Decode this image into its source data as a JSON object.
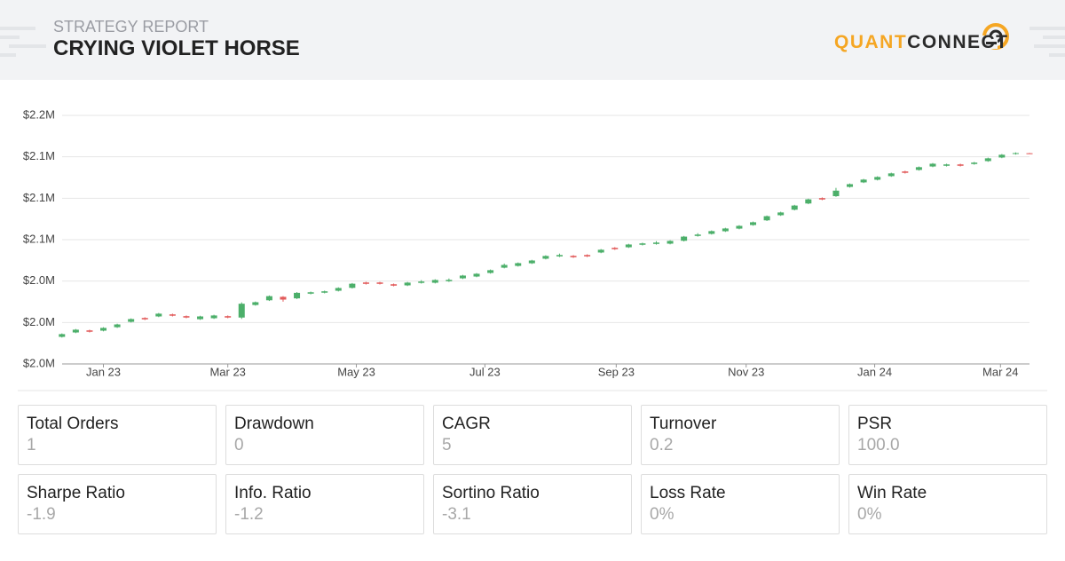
{
  "header": {
    "subtitle": "STRATEGY REPORT",
    "title": "CRYING VIOLET HORSE",
    "logo_left": "QUANT",
    "logo_right": "CONNECT"
  },
  "chart_data": {
    "type": "candlestick",
    "up_color": "#4caf6a",
    "down_color": "#e25b5b",
    "grid": true,
    "x": [
      0,
      1,
      2,
      3,
      4,
      5,
      6,
      7,
      8,
      9,
      10,
      11,
      12,
      13,
      14,
      15,
      16,
      17,
      18,
      19,
      20,
      21,
      22,
      23,
      24,
      25,
      26,
      27,
      28,
      29,
      30,
      31,
      32,
      33,
      34,
      35,
      36,
      37,
      38,
      39,
      40,
      41,
      42,
      43,
      44,
      45,
      46,
      47,
      48,
      49,
      50,
      51,
      52,
      53,
      54,
      55,
      56,
      57,
      58,
      59,
      60,
      61,
      62,
      63,
      64,
      65,
      66,
      67,
      68,
      69,
      70
    ],
    "open": [
      1999600,
      2002800,
      2004300,
      2004100,
      2006600,
      2010500,
      2013300,
      2014400,
      2015900,
      2014600,
      2012400,
      2013100,
      2014600,
      2013600,
      2022700,
      2026100,
      2028600,
      2027500,
      2030900,
      2031600,
      2033000,
      2035100,
      2039000,
      2039000,
      2037700,
      2036900,
      2038700,
      2038800,
      2039900,
      2042000,
      2043300,
      2045900,
      2049700,
      2051000,
      2052900,
      2056200,
      2057900,
      2058300,
      2058900,
      2060700,
      2064100,
      2064500,
      2066300,
      2066900,
      2067100,
      2069200,
      2072700,
      2074200,
      2076100,
      2078000,
      2080600,
      2084000,
      2087700,
      2091700,
      2096200,
      2100100,
      2101500,
      2108200,
      2111500,
      2113400,
      2116000,
      2119400,
      2120500,
      2123000,
      2123500,
      2124500,
      2124800,
      2126900,
      2129500,
      2132100,
      2132600
    ],
    "high": [
      2002100,
      2005300,
      2004800,
      2006600,
      2009100,
      2013000,
      2013800,
      2016900,
      2016400,
      2015100,
      2014900,
      2015600,
      2015100,
      2024600,
      2025200,
      2029600,
      2029100,
      2032000,
      2032400,
      2033100,
      2035500,
      2038600,
      2039500,
      2039500,
      2038200,
      2039400,
      2040700,
      2041300,
      2041900,
      2044500,
      2045800,
      2048400,
      2052700,
      2053500,
      2055400,
      2058700,
      2059900,
      2058800,
      2059400,
      2063200,
      2064600,
      2067000,
      2067800,
      2068900,
      2069600,
      2072700,
      2074700,
      2076700,
      2078600,
      2080500,
      2083100,
      2087500,
      2090200,
      2095200,
      2099700,
      2100600,
      2107500,
      2110700,
      2114000,
      2115900,
      2118500,
      2119900,
      2123000,
      2125500,
      2125000,
      2125000,
      2126300,
      2129400,
      2132000,
      2133200,
      2132800
    ],
    "low": [
      1999100,
      2002300,
      2002800,
      2003600,
      2006100,
      2010000,
      2011800,
      2013900,
      2014400,
      2013100,
      2011900,
      2012600,
      2013100,
      2012600,
      2022200,
      2025600,
      2025100,
      2027000,
      2030400,
      2031100,
      2032500,
      2034600,
      2037500,
      2037500,
      2036200,
      2036400,
      2038200,
      2038300,
      2039400,
      2041500,
      2042800,
      2045400,
      2049200,
      2050500,
      2052400,
      2055700,
      2057400,
      2056800,
      2057400,
      2060200,
      2062600,
      2064000,
      2065800,
      2066400,
      2066600,
      2068700,
      2072200,
      2073700,
      2075600,
      2077500,
      2080100,
      2083500,
      2087200,
      2091200,
      2095700,
      2098600,
      2101000,
      2107700,
      2111000,
      2112900,
      2115500,
      2117900,
      2120000,
      2122500,
      2123000,
      2123000,
      2124300,
      2126400,
      2129000,
      2131600,
      2132000
    ],
    "close": [
      2001600,
      2004800,
      2003300,
      2006100,
      2008600,
      2012500,
      2012300,
      2016400,
      2014900,
      2013600,
      2014400,
      2015100,
      2013600,
      2023600,
      2024700,
      2029100,
      2026600,
      2031500,
      2031900,
      2032600,
      2035000,
      2038100,
      2038000,
      2038000,
      2036700,
      2038900,
      2039700,
      2040800,
      2040900,
      2044000,
      2045300,
      2047900,
      2051700,
      2053000,
      2054900,
      2058200,
      2058900,
      2057300,
      2057900,
      2062700,
      2063100,
      2066500,
      2067300,
      2067900,
      2069100,
      2072200,
      2073700,
      2076200,
      2078100,
      2080000,
      2082600,
      2087000,
      2089700,
      2094700,
      2099200,
      2099100,
      2105500,
      2110200,
      2113500,
      2115400,
      2118000,
      2118400,
      2122500,
      2125000,
      2124500,
      2123500,
      2125800,
      2128900,
      2131500,
      2132700,
      2132200
    ],
    "xlim": [
      -0.5,
      70
    ],
    "xticks": [
      {
        "value": 3,
        "label": "Jan 23"
      },
      {
        "value": 12,
        "label": "Mar 23"
      },
      {
        "value": 21.3,
        "label": "May 23"
      },
      {
        "value": 30.6,
        "label": "Jul 23"
      },
      {
        "value": 40.1,
        "label": "Sep 23"
      },
      {
        "value": 49.5,
        "label": "Nov 23"
      },
      {
        "value": 58.8,
        "label": "Jan 24"
      },
      {
        "value": 67.9,
        "label": "Mar 24"
      }
    ],
    "ylim": [
      1980000,
      2160000
    ],
    "yticks": [
      {
        "value": 1980000,
        "label": "$2.0M"
      },
      {
        "value": 2010000,
        "label": "$2.0M"
      },
      {
        "value": 2040000,
        "label": "$2.0M"
      },
      {
        "value": 2070000,
        "label": "$2.1M"
      },
      {
        "value": 2100000,
        "label": "$2.1M"
      },
      {
        "value": 2130000,
        "label": "$2.1M"
      },
      {
        "value": 2160000,
        "label": "$2.2M"
      }
    ]
  },
  "stats": [
    {
      "label": "Total Orders",
      "value": "1"
    },
    {
      "label": "Drawdown",
      "value": "0"
    },
    {
      "label": "CAGR",
      "value": "5"
    },
    {
      "label": "Turnover",
      "value": "0.2"
    },
    {
      "label": "PSR",
      "value": "100.0"
    },
    {
      "label": "Sharpe Ratio",
      "value": "-1.9"
    },
    {
      "label": "Info. Ratio",
      "value": "-1.2"
    },
    {
      "label": "Sortino Ratio",
      "value": "-3.1"
    },
    {
      "label": "Loss Rate",
      "value": "0%"
    },
    {
      "label": "Win Rate",
      "value": "0%"
    }
  ]
}
